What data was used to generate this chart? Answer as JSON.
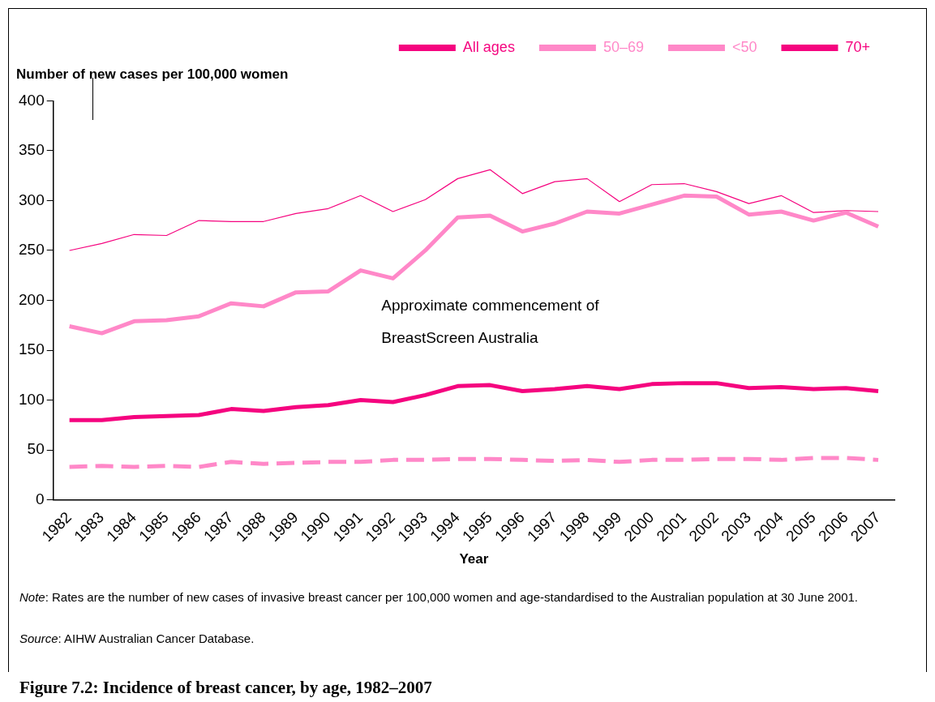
{
  "chart_data": {
    "type": "line",
    "title": "Figure 7.2: Incidence of breast cancer, by age, 1982–2007",
    "xlabel": "Year",
    "ylabel": "Number of new cases per 100,000 women",
    "categories": [
      "1982",
      "1983",
      "1984",
      "1985",
      "1986",
      "1987",
      "1988",
      "1989",
      "1990",
      "1991",
      "1992",
      "1993",
      "1994",
      "1995",
      "1996",
      "1997",
      "1998",
      "1999",
      "2000",
      "2001",
      "2002",
      "2003",
      "2004",
      "2005",
      "2006",
      "2007"
    ],
    "series": [
      {
        "name": "All ages",
        "color": "#f5047f",
        "line_style": "solid",
        "values": [
          80,
          80,
          83,
          84,
          85,
          91,
          89,
          93,
          95,
          100,
          98,
          105,
          114,
          115,
          109,
          111,
          114,
          111,
          116,
          117,
          117,
          112,
          113,
          111,
          112,
          109
        ]
      },
      {
        "name": "50–69",
        "color": "#ff88c8",
        "line_style": "solid",
        "values": [
          174,
          167,
          179,
          180,
          184,
          197,
          194,
          208,
          209,
          230,
          222,
          250,
          283,
          285,
          269,
          277,
          289,
          287,
          296,
          305,
          304,
          286,
          289,
          280,
          288,
          274
        ]
      },
      {
        "name": "<50",
        "color": "#ff88c8",
        "line_style": "dashed",
        "values": [
          33,
          34,
          33,
          34,
          33,
          38,
          36,
          37,
          38,
          38,
          40,
          40,
          41,
          41,
          40,
          39,
          40,
          38,
          40,
          40,
          41,
          41,
          40,
          42,
          42,
          40
        ]
      },
      {
        "name": "70+",
        "color": "#f5047f",
        "line_style": "solid",
        "values": [
          250,
          257,
          266,
          265,
          280,
          279,
          279,
          287,
          292,
          305,
          289,
          301,
          322,
          331,
          307,
          319,
          322,
          299,
          316,
          317,
          309,
          297,
          305,
          288,
          290,
          289
        ]
      }
    ],
    "ylim": [
      0,
      400
    ],
    "yticks": [
      0,
      50,
      100,
      150,
      200,
      250,
      300,
      350,
      400
    ],
    "grid": false,
    "legend": "top right",
    "marker": "none",
    "annotations": [
      "Approximate commencement of BreastScreen Australia",
      "Note: Rates are the number of new cases of invasive breast cancer per 100,000 women and age-standardised to the Australian population at 30 June 2001.",
      "Source: AIHW Australian Cancer Database."
    ]
  }
}
